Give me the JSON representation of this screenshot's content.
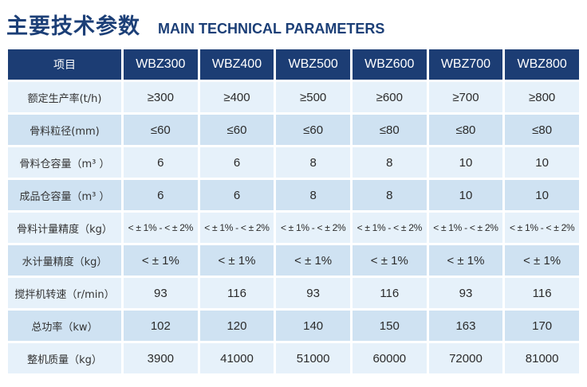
{
  "title": {
    "cn": "主要技术参数",
    "en": "MAIN TECHNICAL PARAMETERS"
  },
  "table": {
    "header": [
      "项目",
      "WBZ300",
      "WBZ400",
      "WBZ500",
      "WBZ600",
      "WBZ700",
      "WBZ800"
    ],
    "rows": [
      {
        "label": "额定生产率(t/h)",
        "values": [
          "≥300",
          "≥400",
          "≥500",
          "≥600",
          "≥700",
          "≥800"
        ]
      },
      {
        "label": "骨料粒径(mm)",
        "values": [
          "≤60",
          "≤60",
          "≤60",
          "≤80",
          "≤80",
          "≤80"
        ]
      },
      {
        "label": "骨料仓容量（m³ ）",
        "values": [
          "6",
          "6",
          "8",
          "8",
          "10",
          "10"
        ]
      },
      {
        "label": "成品仓容量（m³ ）",
        "values": [
          "6",
          "6",
          "8",
          "8",
          "10",
          "10"
        ]
      },
      {
        "label": "骨料计量精度（kg）",
        "values": [
          "< ± 1% - < ± 2%",
          "< ± 1% - < ± 2%",
          "< ± 1% - < ± 2%",
          "< ± 1% - < ± 2%",
          "< ± 1% - < ± 2%",
          "< ± 1% - < ± 2%"
        ]
      },
      {
        "label": "水计量精度（kg）",
        "values": [
          "< ± 1%",
          "< ± 1%",
          "< ± 1%",
          "< ± 1%",
          "< ± 1%",
          "< ± 1%"
        ]
      },
      {
        "label": "搅拌机转速（r/min）",
        "values": [
          "93",
          "116",
          "93",
          "116",
          "93",
          "116"
        ]
      },
      {
        "label": "总功率（kw）",
        "values": [
          "102",
          "120",
          "140",
          "150",
          "163",
          "170"
        ]
      },
      {
        "label": "整机质量（kg）",
        "values": [
          "3900",
          "41000",
          "51000",
          "60000",
          "72000",
          "81000"
        ]
      }
    ]
  },
  "colors": {
    "header_bg": "#1c3d74",
    "title_text": "#1c3f77",
    "row_light": "#e6f1fa",
    "row_dark": "#cfe2f2"
  }
}
